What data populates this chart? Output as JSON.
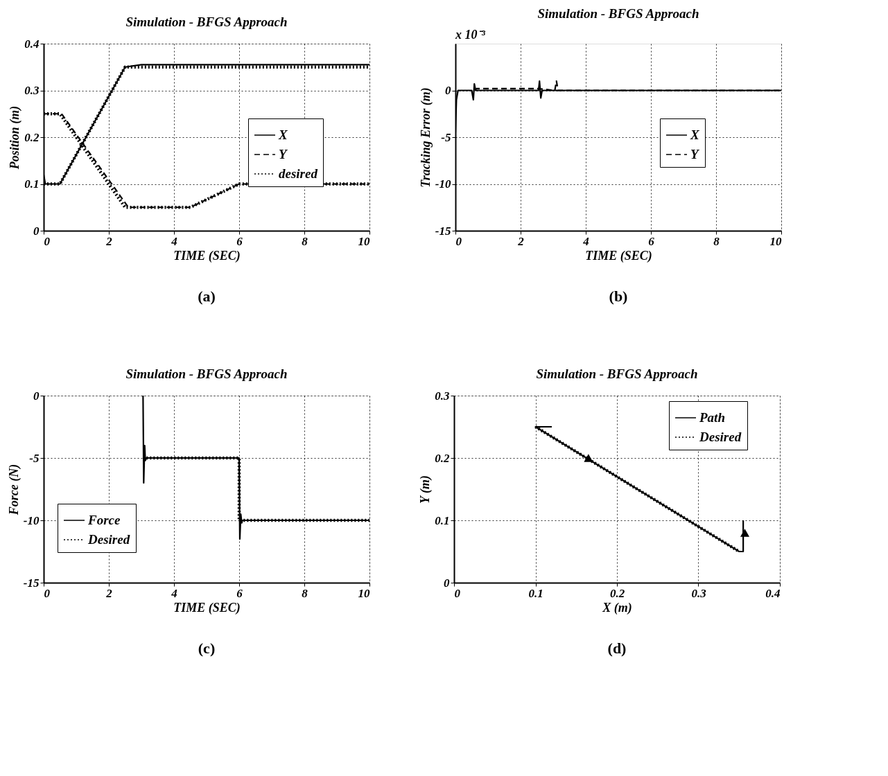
{
  "chart_data": [
    {
      "type": "line",
      "title": "Simulation - BFGS Approach",
      "xlabel": "TIME (SEC)",
      "ylabel": "Position (m)",
      "xlim": [
        0,
        10
      ],
      "ylim": [
        0,
        0.4
      ],
      "xticks": [
        0,
        2,
        4,
        6,
        8,
        10
      ],
      "yticks": [
        0,
        0.1,
        0.2,
        0.3,
        0.4
      ],
      "grid": true,
      "legend": "right",
      "annotations": [
        "(a)"
      ],
      "series": [
        {
          "name": "X",
          "color": "#000000",
          "line_style": "solid",
          "x": [
            0,
            0.05,
            0.5,
            2.5,
            3,
            10
          ],
          "values": [
            0.12,
            0.1,
            0.1,
            0.35,
            0.355,
            0.355
          ]
        },
        {
          "name": "Y",
          "color": "#000000",
          "line_style": "dashed",
          "x": [
            0,
            0.55,
            2.6,
            4.5,
            6,
            10
          ],
          "values": [
            0.25,
            0.25,
            0.05,
            0.05,
            0.1,
            0.1
          ]
        },
        {
          "name": "desired",
          "color": "#000000",
          "line_style": "dotted",
          "x": [
            0,
            0.5,
            2.5,
            10,
            null,
            0,
            0.5,
            2.5,
            4.5,
            6,
            10
          ],
          "values": [
            0.1,
            0.1,
            0.35,
            0.35,
            null,
            0.25,
            0.25,
            0.05,
            0.05,
            0.1,
            0.1
          ]
        }
      ]
    },
    {
      "type": "line",
      "title": "Simulation - BFGS Approach",
      "xlabel": "TIME (SEC)",
      "ylabel": "Tracking Error (m)",
      "xlim": [
        0,
        10
      ],
      "ylim": [
        -15,
        5
      ],
      "xticks": [
        0,
        2,
        4,
        6,
        8,
        10
      ],
      "yticks": [
        -15,
        -10,
        -5,
        0
      ],
      "grid": true,
      "legend": "right",
      "annotations": [
        "x 10⁻³",
        "(b)"
      ],
      "series": [
        {
          "name": "X",
          "color": "#000000",
          "line_style": "solid",
          "x": [
            0,
            0.03,
            0.08,
            0.5,
            0.55,
            0.58,
            0.62,
            2.55,
            2.58,
            2.62,
            2.66,
            10
          ],
          "values": [
            -4.5,
            -1,
            0,
            0,
            -1,
            0.7,
            0,
            0,
            1,
            -0.8,
            0,
            0
          ]
        },
        {
          "name": "Y",
          "color": "#000000",
          "line_style": "dashed",
          "x": [
            0.6,
            0.65,
            2.5,
            3.05,
            3.1,
            3.15,
            3.2,
            10
          ],
          "values": [
            0,
            0.2,
            0.2,
            0,
            1,
            0,
            0,
            0
          ]
        }
      ]
    },
    {
      "type": "line",
      "title": "Simulation - BFGS Approach",
      "xlabel": "TIME (SEC)",
      "ylabel": "Force (N)",
      "xlim": [
        0,
        10
      ],
      "ylim": [
        -15,
        0
      ],
      "xticks": [
        0,
        2,
        4,
        6,
        8,
        10
      ],
      "yticks": [
        -15,
        -10,
        -5,
        0
      ],
      "grid": true,
      "legend": "left",
      "annotations": [
        "(c)"
      ],
      "series": [
        {
          "name": "Force",
          "color": "#000000",
          "line_style": "solid",
          "x": [
            3.05,
            3.07,
            3.1,
            3.12,
            3.15,
            6,
            6.02,
            6.05,
            6.08,
            6.1,
            10
          ],
          "values": [
            0,
            -7,
            -4,
            -5.2,
            -5,
            -5,
            -11.5,
            -9.5,
            -10.2,
            -10,
            -10
          ]
        },
        {
          "name": "Desired",
          "color": "#000000",
          "line_style": "dotted",
          "x": [
            3.05,
            6,
            6,
            10
          ],
          "values": [
            -5,
            -5,
            -10,
            -10
          ]
        }
      ]
    },
    {
      "type": "line",
      "title": "Simulation - BFGS Approach",
      "xlabel": "X (m)",
      "ylabel": "Y (m)",
      "xlim": [
        0,
        0.4
      ],
      "ylim": [
        0,
        0.3
      ],
      "xticks": [
        0,
        0.1,
        0.2,
        0.3,
        0.4
      ],
      "yticks": [
        0,
        0.1,
        0.2,
        0.3
      ],
      "grid": true,
      "legend": "top right",
      "annotations": [
        "(d)"
      ],
      "series": [
        {
          "name": "Path",
          "color": "#000000",
          "line_style": "solid",
          "x": [
            0.12,
            0.1,
            0.35,
            0.355,
            0.355
          ],
          "values": [
            0.25,
            0.25,
            0.05,
            0.05,
            0.1
          ]
        },
        {
          "name": "Desired",
          "color": "#000000",
          "line_style": "dotted",
          "x": [
            0.1,
            0.35
          ],
          "values": [
            0.25,
            0.05
          ]
        },
        {
          "type": "scatter",
          "marker": "triangle",
          "color": "#000000",
          "x": [
            0.165,
            0.357
          ],
          "values": [
            0.2,
            0.08
          ]
        }
      ]
    }
  ]
}
